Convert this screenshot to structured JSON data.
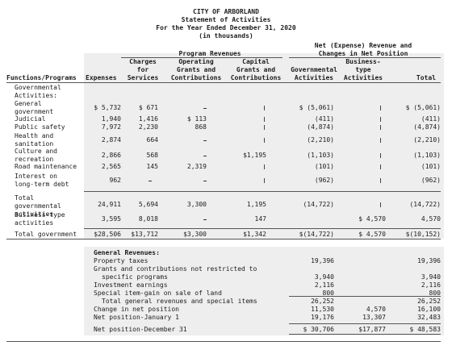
{
  "header": {
    "entity": "CITY OF ARBORLAND",
    "statement": "Statement of Activities",
    "period": "For the Year Ended December 31, 2020",
    "units": "(in thousands)"
  },
  "col_headers": {
    "program_revenues": "Program Revenues",
    "net_expense": "Net (Expense) Revenue and",
    "net_expense2": "Changes in Net Position",
    "functions": "Functions/Programs",
    "expenses": "Expenses",
    "charges1": "Charges",
    "charges2": "for",
    "charges3": "Services",
    "operating1": "Operating",
    "operating2": "Grants and",
    "operating3": "Contributions",
    "capital1": "Capital",
    "capital2": "Grants and",
    "capital3": "Contributions",
    "governmental1": "Governmental",
    "governmental2": "Activities",
    "business1": "Business-",
    "business2": "type",
    "business3": "Activities",
    "total": "Total"
  },
  "labels": {
    "gov_activities1": "Governmental",
    "gov_activities2": "Activities:",
    "general_revenues": "General Revenues:"
  },
  "rows": [
    {
      "label1": "General",
      "label2": "government",
      "exp": "$ 5,732",
      "chg": "$   671",
      "op": "",
      "cap": "",
      "gov": "$ (5,061)",
      "bus": "",
      "tot": "$ (5,061)"
    },
    {
      "label1": "Judicial",
      "label2": "",
      "exp": "1,940",
      "chg": "1,416",
      "op": "$  113",
      "cap": "",
      "gov": "(411)",
      "bus": "",
      "tot": "(411)"
    },
    {
      "label1": "Public safety",
      "label2": "",
      "exp": "7,972",
      "chg": "2,230",
      "op": "868",
      "cap": "",
      "gov": "(4,874)",
      "bus": "",
      "tot": "(4,874)"
    },
    {
      "label1": "Health and",
      "label2": "sanitation",
      "exp": "2,874",
      "chg": "664",
      "op": "",
      "cap": "",
      "gov": "(2,210)",
      "bus": "",
      "tot": "(2,210)"
    },
    {
      "label1": "Culture and",
      "label2": "recreation",
      "exp": "2,866",
      "chg": "568",
      "op": "",
      "cap": "$1,195",
      "gov": "(1,103)",
      "bus": "",
      "tot": "(1,103)"
    },
    {
      "label1": "Road maintenance",
      "label2": "",
      "exp": "2,565",
      "chg": "145",
      "op": "2,319",
      "cap": "",
      "gov": "(101)",
      "bus": "",
      "tot": "(101)"
    },
    {
      "label1": "Interest on",
      "label2": "long-term debt",
      "exp": "962",
      "chg": "",
      "op": "",
      "cap": "",
      "gov": "(962)",
      "bus": "",
      "tot": "(962)"
    },
    {
      "label1": "Total",
      "label2": "governmental",
      "label3": "activities",
      "exp": "24,911",
      "chg": "5,694",
      "op": "3,300",
      "cap": "1,195",
      "gov": "(14,722)",
      "bus": "",
      "tot": "(14,722)"
    },
    {
      "label1": "Business-type",
      "label2": "activities",
      "exp": "3,595",
      "chg": "8,018",
      "op": "",
      "cap": "147",
      "gov": "",
      "bus": "$ 4,570",
      "tot": "4,570"
    },
    {
      "label1": "Total government",
      "label2": "",
      "exp": "$28,506",
      "chg": "$13,712",
      "op": "$3,300",
      "cap": "$1,342",
      "gov": "$(14,722)",
      "bus": "$ 4,570",
      "tot": "$(10,152)"
    }
  ],
  "general": [
    {
      "l1": "Property taxes",
      "l2": "",
      "gov": "19,396",
      "bus": "",
      "tot": "19,396"
    },
    {
      "l1": "Grants and contributions not restricted to",
      "l2": "specific programs",
      "gov": "3,940",
      "bus": "",
      "tot": "3,940"
    },
    {
      "l1": "Investment earnings",
      "l2": "",
      "gov": "2,116",
      "bus": "",
      "tot": "2,116"
    },
    {
      "l1": "Special item-gain on sale of land",
      "l2": "",
      "gov": "800",
      "bus": "",
      "tot": "800"
    },
    {
      "l1": "Total general revenues and special items",
      "l2": "",
      "gov": "26,252",
      "bus": "",
      "tot": "26,252"
    },
    {
      "l1": "Change in net position",
      "l2": "",
      "gov": "11,530",
      "bus": "4,570",
      "tot": "16,100"
    },
    {
      "l1": "Net position-January 1",
      "l2": "",
      "gov": "19,176",
      "bus": "13,307",
      "tot": "32,483"
    },
    {
      "l1": "Net position-December 31",
      "l2": "",
      "gov": "$ 30,706",
      "bus": "$17,877",
      "tot": "$ 48,583"
    }
  ]
}
